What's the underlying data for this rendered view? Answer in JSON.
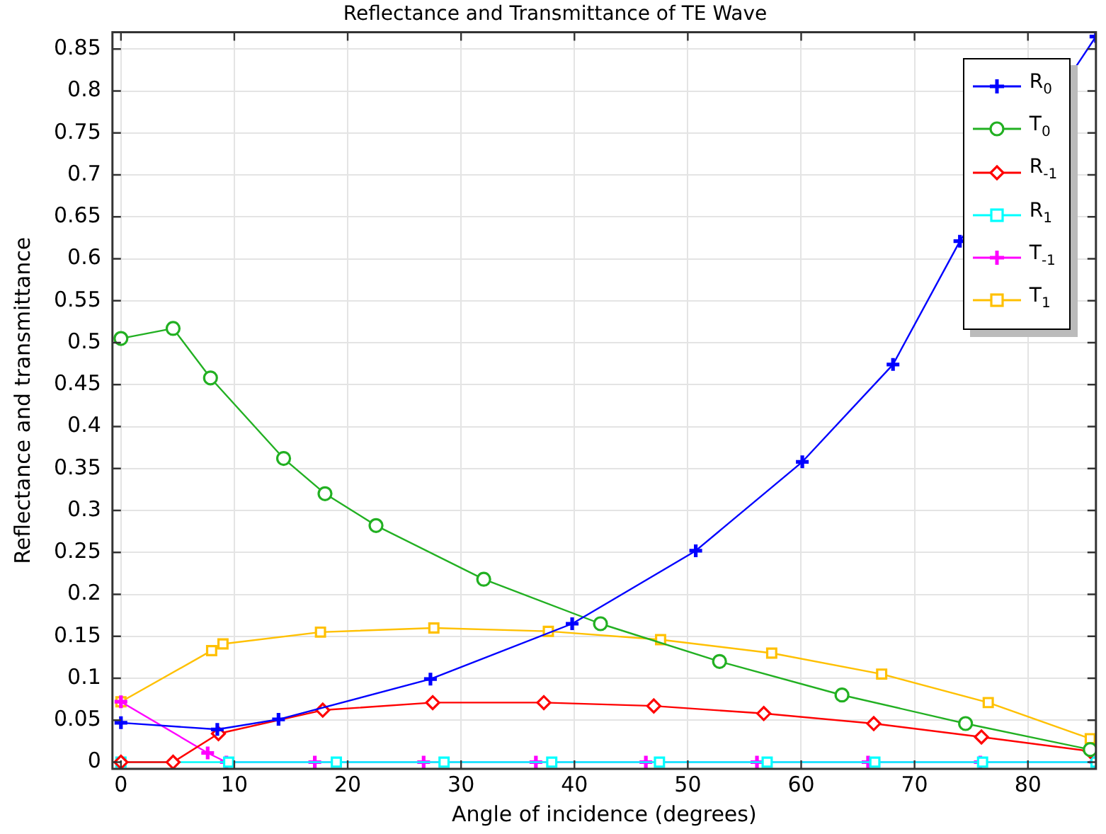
{
  "chart_data": {
    "type": "line",
    "title": "Reflectance and Transmittance of TE Wave",
    "xlabel": "Angle of incidence (degrees)",
    "ylabel": "Reflectance and transmittance",
    "xlim": [
      -0.75,
      86
    ],
    "xticks": [
      0,
      10,
      20,
      30,
      40,
      50,
      60,
      70,
      80
    ],
    "ylim": [
      -0.008,
      0.87
    ],
    "yticks": [
      0,
      0.05,
      0.1,
      0.15,
      0.2,
      0.25,
      0.3,
      0.35,
      0.4,
      0.45,
      0.5,
      0.55,
      0.6,
      0.65,
      0.7,
      0.75,
      0.8,
      0.85
    ],
    "grid": true,
    "legend": "top right",
    "line_style": "solid",
    "series": [
      {
        "name": "R$_{0}$",
        "color": "#0000ff",
        "marker": "cross",
        "x": [
          0,
          8.5,
          13.9,
          27.3,
          39.8,
          50.7,
          60.1,
          68.1,
          74,
          86
        ],
        "values": [
          0.047,
          0.039,
          0.051,
          0.099,
          0.165,
          0.252,
          0.358,
          0.474,
          0.621,
          0.865
        ]
      },
      {
        "name": "T$_{0}$",
        "color": "#22b022",
        "marker": "circle",
        "x": [
          0,
          4.6,
          7.9,
          14.35,
          18,
          22.5,
          32,
          42.3,
          52.8,
          63.6,
          74.5,
          85.5
        ],
        "values": [
          0.505,
          0.517,
          0.458,
          0.362,
          0.32,
          0.282,
          0.218,
          0.165,
          0.12,
          0.08,
          0.046,
          0.015
        ]
      },
      {
        "name": "R$_{-1}$",
        "color": "#ff0000",
        "marker": "diamond",
        "x": [
          0,
          4.6,
          8.6,
          17.8,
          27.5,
          37.3,
          47,
          56.7,
          66.4,
          75.9,
          85.5
        ],
        "values": [
          0,
          0,
          0.034,
          0.062,
          0.071,
          0.071,
          0.067,
          0.058,
          0.046,
          0.03,
          0.013
        ]
      },
      {
        "name": "R$_{1}$",
        "color": "#00ffff",
        "marker": "square",
        "x": [
          0,
          9.5,
          19,
          28.5,
          38,
          47.5,
          57,
          66.5,
          76,
          86
        ],
        "values": [
          0,
          0,
          0,
          0,
          0,
          0,
          0,
          0,
          0,
          0
        ]
      },
      {
        "name": "T$_{-1}$",
        "color": "#ff00ff",
        "marker": "cross",
        "x": [
          0,
          7.65,
          9.3,
          17.1,
          26.7,
          36.6,
          46.3,
          56.1,
          65.9,
          75.8,
          86
        ],
        "values": [
          0.072,
          0.011,
          0,
          0,
          0,
          0,
          0,
          0,
          0,
          0,
          0
        ]
      },
      {
        "name": "T$_{1}$",
        "color": "#ffc000",
        "marker": "square",
        "x": [
          0,
          8,
          9,
          17.6,
          27.6,
          37.7,
          47.6,
          57.4,
          67.1,
          76.5,
          85.5
        ],
        "values": [
          0.072,
          0.133,
          0.141,
          0.155,
          0.16,
          0.156,
          0.146,
          0.13,
          0.105,
          0.071,
          0.028
        ]
      }
    ]
  }
}
